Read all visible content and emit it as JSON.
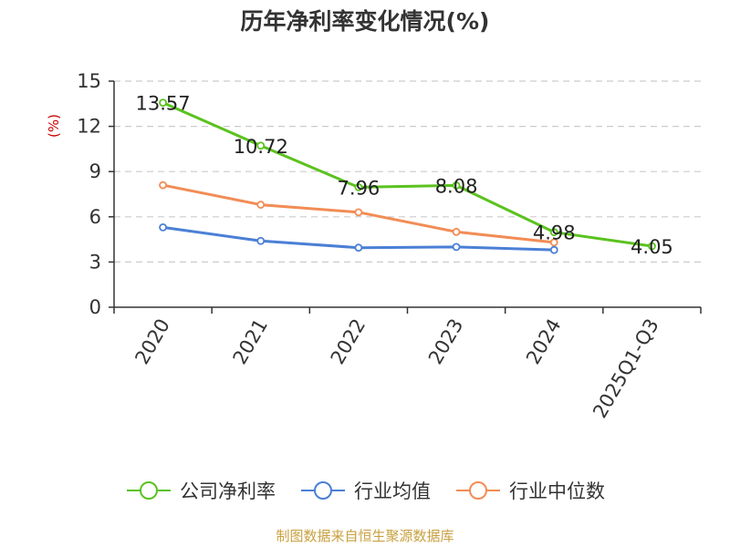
{
  "title": "历年净利率变化情况(%)",
  "source": "制图数据来自恒生聚源数据库",
  "colors": {
    "source": "#c8a040",
    "ylabel": "#cc0000",
    "grid": "#cccccc",
    "axis": "#333333"
  },
  "chart_data": {
    "type": "line",
    "title": "历年净利率变化情况(%)",
    "ylabel": "(%)",
    "xlabel": "",
    "categories": [
      "2020",
      "2021",
      "2022",
      "2023",
      "2024",
      "2025Q1-Q3"
    ],
    "ylim": [
      0,
      15
    ],
    "yticks": [
      0,
      3,
      6,
      9,
      12,
      15
    ],
    "grid": true,
    "legend_position": "bottom",
    "series": [
      {
        "name": "公司净利率",
        "color": "#5bc21f",
        "values": [
          13.57,
          10.72,
          7.96,
          8.08,
          4.98,
          4.05
        ],
        "labels": [
          "13.57",
          "10.72",
          "7.96",
          "8.08",
          "4.98",
          "4.05"
        ]
      },
      {
        "name": "行业均值",
        "color": "#4a7fd6",
        "values": [
          5.3,
          4.4,
          3.95,
          4.0,
          3.8,
          null
        ],
        "labels": []
      },
      {
        "name": "行业中位数",
        "color": "#f28c55",
        "values": [
          8.1,
          6.8,
          6.3,
          5.0,
          4.3,
          null
        ],
        "labels": []
      }
    ]
  }
}
